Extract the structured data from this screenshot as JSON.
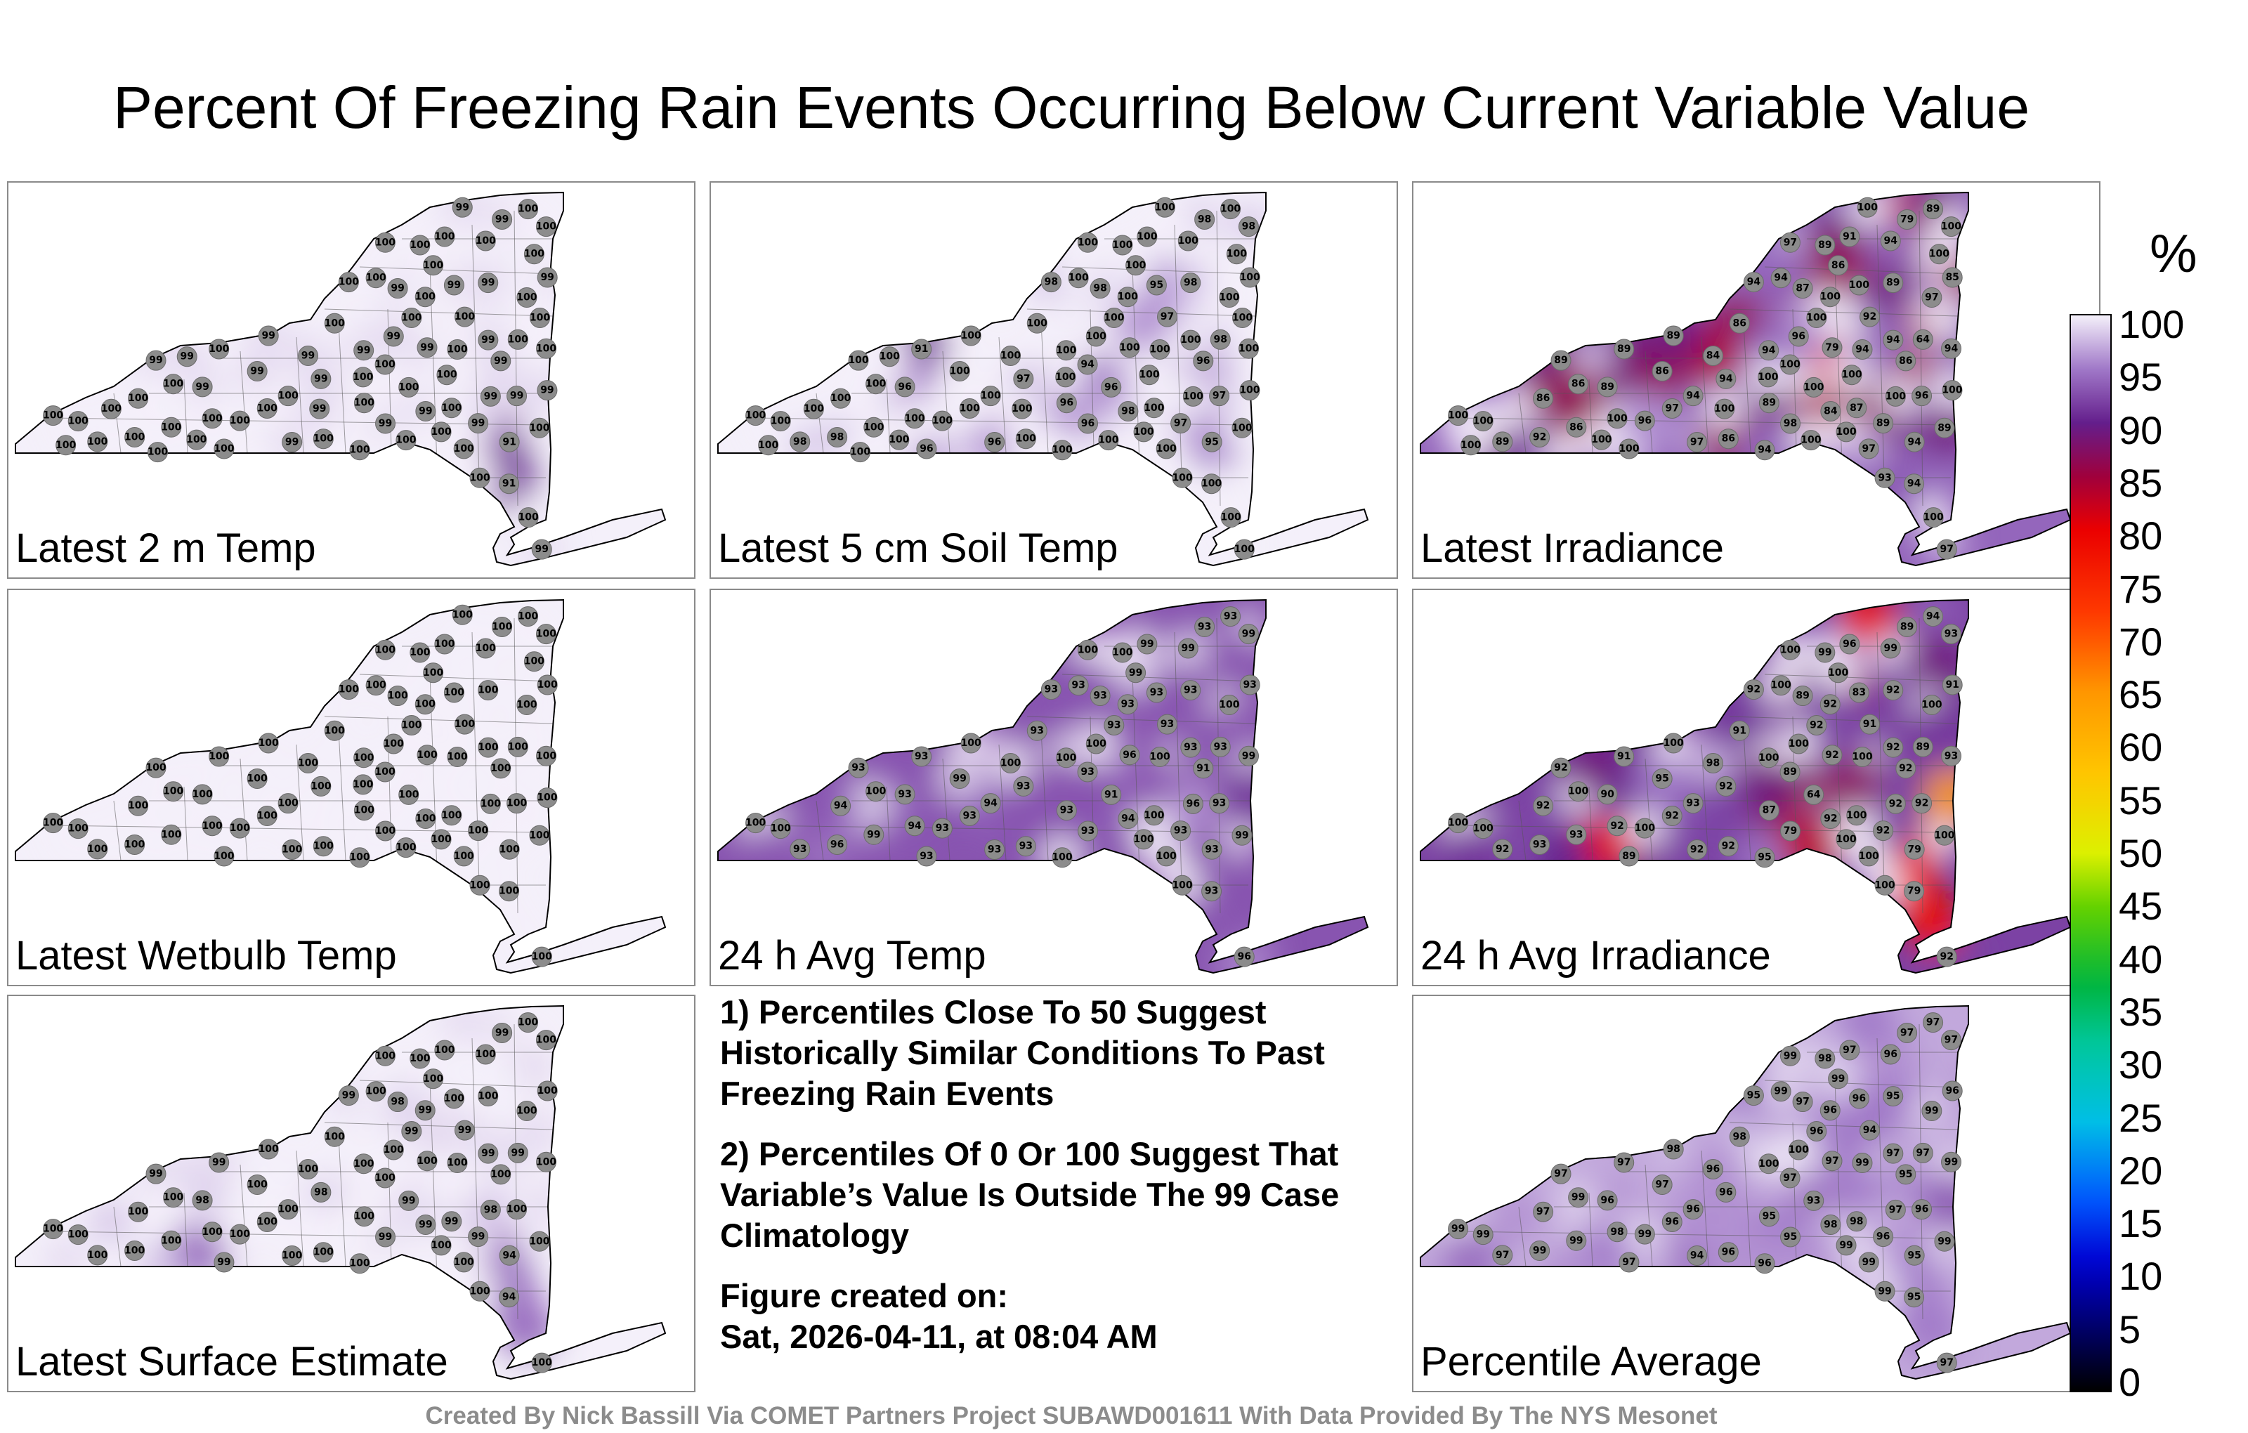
{
  "title": "Percent Of Freezing Rain Events Occurring Below Current Variable Value",
  "chart_data": [
    {
      "type": "heatmap",
      "panel": "Latest 2 m Temp",
      "station_values": [
        100,
        99,
        99,
        100,
        100,
        91,
        91,
        100,
        100,
        99,
        99,
        99,
        100,
        99,
        100,
        99,
        99,
        99,
        100,
        99,
        100,
        99,
        100,
        100,
        99,
        100,
        100,
        100,
        99,
        99,
        99,
        100,
        100,
        99,
        100,
        100,
        99,
        100,
        99,
        100,
        100,
        100,
        99,
        100,
        100,
        99,
        100,
        100,
        100,
        100,
        100,
        100,
        100,
        100,
        100,
        99,
        99,
        99,
        100,
        100,
        100,
        100,
        100,
        100,
        100,
        99,
        99,
        100,
        100,
        100,
        100,
        100,
        100,
        100,
        99,
        100,
        99,
        100,
        100
      ]
    },
    {
      "type": "heatmap",
      "panel": "Latest 5 cm Soil Temp",
      "station_values": [
        96,
        96,
        95,
        96,
        94,
        100,
        95,
        96,
        97,
        97,
        97,
        98,
        91,
        96,
        98,
        96,
        97,
        96,
        98,
        98,
        100,
        100,
        100,
        100,
        98,
        100,
        100,
        98,
        100,
        100,
        100,
        100,
        100,
        100,
        100,
        100,
        98,
        98,
        100,
        100,
        100,
        98,
        100,
        100,
        100,
        100,
        100,
        100,
        100,
        100,
        100,
        100,
        100,
        100,
        100,
        100,
        100,
        100,
        100,
        100,
        100,
        100,
        100,
        100,
        100,
        100,
        100,
        100,
        100,
        100,
        100,
        100,
        100,
        100,
        100,
        100,
        100,
        100,
        100
      ]
    },
    {
      "type": "heatmap",
      "panel": "Latest Irradiance",
      "station_values": [
        100,
        98,
        100,
        100,
        100,
        94,
        94,
        89,
        92,
        96,
        94,
        79,
        89,
        89,
        94,
        86,
        89,
        97,
        64,
        87,
        86,
        85,
        97,
        100,
        89,
        86,
        86,
        89,
        79,
        94,
        100,
        100,
        100,
        97,
        94,
        89,
        84,
        92,
        89,
        94,
        86,
        100,
        86,
        91,
        94,
        84,
        94,
        87,
        89,
        100,
        100,
        94,
        93,
        97,
        100,
        96,
        94,
        89,
        97,
        86,
        89,
        96,
        94,
        86,
        97,
        100,
        100,
        100,
        100,
        100,
        100,
        100,
        100,
        100,
        100
      ]
    },
    {
      "type": "heatmap",
      "panel": "Latest Wetbulb Temp",
      "station_values": [
        100,
        100,
        100,
        100,
        100,
        100,
        100,
        100,
        100,
        100,
        100,
        100,
        100,
        100,
        100,
        100,
        100,
        100,
        100,
        100,
        100,
        100,
        100,
        100,
        100,
        100,
        100,
        100,
        100,
        100,
        100,
        100,
        100,
        100,
        100,
        100,
        100,
        100,
        100,
        100,
        100,
        100,
        100,
        100,
        100,
        100,
        100,
        100,
        100,
        100,
        100,
        100,
        100,
        100,
        100,
        100,
        100,
        100,
        100,
        100,
        100,
        100,
        100,
        100,
        100,
        100,
        100,
        100,
        100,
        100
      ]
    },
    {
      "type": "heatmap",
      "panel": "24 h Avg Temp",
      "station_values": [
        91,
        93,
        93,
        93,
        93,
        93,
        93,
        93,
        93,
        93,
        93,
        93,
        93,
        93,
        93,
        91,
        93,
        93,
        93,
        93,
        93,
        93,
        93,
        93,
        93,
        93,
        94,
        93,
        96,
        93,
        96,
        94,
        93,
        96,
        94,
        93,
        94,
        96,
        93,
        99,
        99,
        99,
        99,
        99,
        100,
        100,
        99,
        100,
        100,
        100,
        100,
        100,
        100,
        100,
        100,
        100,
        100,
        100,
        100,
        99,
        99,
        93,
        93,
        100,
        100
      ]
    },
    {
      "type": "heatmap",
      "panel": "24 h Avg Irradiance",
      "station_values": [
        64,
        79,
        83,
        89,
        89,
        79,
        79,
        87,
        91,
        92,
        92,
        89,
        91,
        90,
        92,
        92,
        92,
        92,
        89,
        89,
        91,
        91,
        92,
        92,
        92,
        92,
        92,
        92,
        92,
        92,
        92,
        92,
        92,
        92,
        93,
        94,
        92,
        93,
        92,
        93,
        93,
        93,
        95,
        96,
        95,
        98,
        99,
        100,
        99,
        100,
        100,
        100,
        100,
        100,
        100,
        100,
        100,
        100,
        100,
        100,
        100,
        100,
        100,
        100,
        100
      ]
    },
    {
      "type": "heatmap",
      "panel": "Latest Surface Estimate",
      "station_values": [
        99,
        99,
        100,
        99,
        100,
        94,
        94,
        100,
        99,
        100,
        98,
        99,
        99,
        98,
        99,
        100,
        99,
        100,
        99,
        98,
        100,
        100,
        100,
        99,
        100,
        100,
        100,
        100,
        100,
        99,
        98,
        100,
        99,
        100,
        100,
        100,
        99,
        100,
        99,
        100,
        100,
        100,
        100,
        100,
        100,
        100,
        100,
        99,
        100,
        100,
        100,
        100,
        100,
        100,
        100,
        100,
        100,
        100,
        100,
        100,
        100,
        100,
        100,
        100,
        100
      ]
    },
    {
      "type": "heatmap",
      "panel": "Percentile Average",
      "station_values": [
        93,
        95,
        96,
        97,
        97,
        95,
        95,
        95,
        94,
        96,
        96,
        97,
        97,
        96,
        95,
        95,
        96,
        94,
        97,
        97,
        98,
        96,
        96,
        96,
        95,
        96,
        97,
        97,
        97,
        97,
        97,
        98,
        96,
        97,
        96,
        97,
        98,
        99,
        97,
        99,
        99,
        97,
        97,
        97,
        96,
        96,
        96,
        98,
        98,
        99,
        99,
        99,
        99,
        99,
        99,
        100,
        100,
        98,
        99,
        99,
        99,
        99,
        99,
        99,
        99
      ]
    }
  ],
  "notes": {
    "note1": "1) Percentiles Close To 50 Suggest Historically Similar Conditions To Past Freezing Rain Events",
    "note2": "2) Percentiles Of 0 Or 100 Suggest That Variable’s Value Is Outside The 99 Case Climatology",
    "created_label": "Figure created on:",
    "created_value": "Sat, 2026-04-11, at 08:04 AM"
  },
  "colorbar": {
    "unit": "%",
    "ticks": [
      "100",
      "95",
      "90",
      "85",
      "80",
      "75",
      "70",
      "65",
      "60",
      "55",
      "50",
      "45",
      "40",
      "35",
      "30",
      "25",
      "20",
      "15",
      "10",
      "5",
      "0"
    ],
    "range": [
      0,
      100
    ]
  },
  "credit": "Created By Nick Bassill Via COMET Partners Project SUBAWD001611 With Data Provided By The NYS Mesonet"
}
